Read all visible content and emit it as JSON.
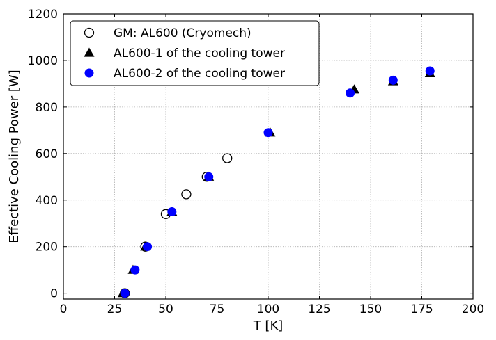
{
  "chart_data": {
    "type": "scatter",
    "xlabel": "T [K]",
    "ylabel": "Effective Cooling Power [W]",
    "xlim": [
      0,
      200
    ],
    "ylim": [
      -25,
      1200
    ],
    "xticks": [
      0,
      25,
      50,
      75,
      100,
      125,
      150,
      175,
      200
    ],
    "yticks": [
      0,
      200,
      400,
      600,
      800,
      1000,
      1200
    ],
    "grid": true,
    "legend_position": "top-left",
    "series": [
      {
        "name": "GM: AL600 (Cryomech)",
        "marker": "open-circle",
        "color": "#000000",
        "x": [
          30,
          40,
          50,
          60,
          70,
          80
        ],
        "y": [
          0,
          200,
          340,
          425,
          500,
          580
        ]
      },
      {
        "name": "AL600-1 of the cooling tower",
        "marker": "triangle",
        "color": "#000000",
        "x": [
          29,
          34,
          40,
          53,
          71,
          101,
          142,
          161,
          179
        ],
        "y": [
          0,
          100,
          200,
          350,
          500,
          690,
          875,
          910,
          945
        ]
      },
      {
        "name": "AL600-2 of the cooling tower",
        "marker": "filled-circle",
        "color": "#0000ff",
        "x": [
          30,
          35,
          41,
          53,
          71,
          100,
          140,
          161,
          179
        ],
        "y": [
          0,
          100,
          200,
          350,
          500,
          690,
          860,
          915,
          955
        ]
      }
    ]
  }
}
